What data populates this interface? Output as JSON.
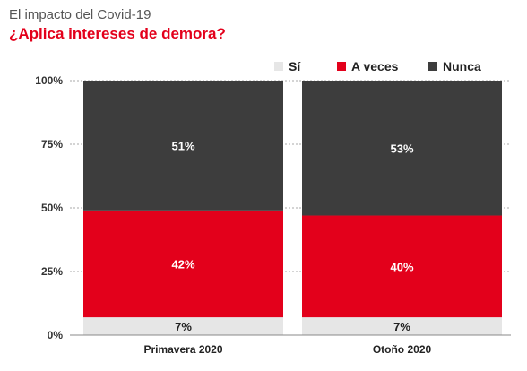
{
  "header": {
    "title": "El impacto del Covid-19",
    "subtitle": "¿Aplica intereses de demora?"
  },
  "colors": {
    "title": "#555555",
    "accent": "#e3001b",
    "si": "#e6e6e6",
    "a_veces": "#e3001b",
    "nunca": "#3d3d3d",
    "grid": "#aaaaaa"
  },
  "chart_data": {
    "type": "bar",
    "stacked": true,
    "title": "¿Aplica intereses de demora?",
    "categories": [
      "Primavera 2020",
      "Otoño 2020"
    ],
    "series": [
      {
        "name": "Sí",
        "values": [
          7,
          7
        ],
        "labels": [
          "7%",
          "7%"
        ]
      },
      {
        "name": "A veces",
        "values": [
          42,
          40
        ],
        "labels": [
          "42%",
          "40%"
        ]
      },
      {
        "name": "Nunca",
        "values": [
          51,
          53
        ],
        "labels": [
          "51%",
          "53%"
        ]
      }
    ],
    "yticks": [
      "0%",
      "25%",
      "50%",
      "75%",
      "100%"
    ],
    "ylim": [
      0,
      100
    ],
    "grid": true,
    "legend_position": "top-right"
  }
}
